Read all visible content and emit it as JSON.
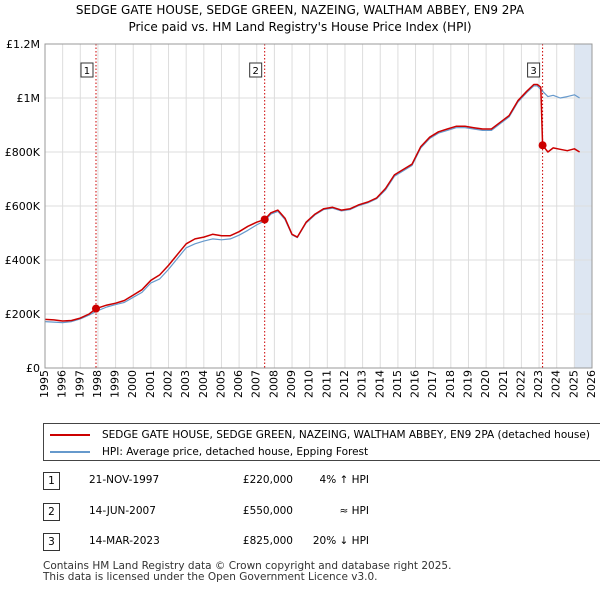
{
  "title_line1": "SEDGE GATE HOUSE, SEDGE GREEN, NAZEING, WALTHAM ABBEY, EN9 2PA",
  "title_line2": "Price paid vs. HM Land Registry's House Price Index (HPI)",
  "colors": {
    "property": "#cc0000",
    "hpi": "#6699cc",
    "shade": "#dde6f2"
  },
  "chart_data": {
    "type": "line",
    "title": "Price paid vs. HM Land Registry's House Price Index (HPI)",
    "xlabel": "",
    "ylabel": "",
    "xlim": [
      1995,
      2026
    ],
    "ylim": [
      0,
      1200000
    ],
    "x_ticks": [
      1995,
      1996,
      1997,
      1998,
      1999,
      2000,
      2001,
      2002,
      2003,
      2004,
      2005,
      2006,
      2007,
      2008,
      2009,
      2010,
      2011,
      2012,
      2013,
      2014,
      2015,
      2016,
      2017,
      2018,
      2019,
      2020,
      2021,
      2022,
      2023,
      2024,
      2025,
      2026
    ],
    "y_ticks": [
      {
        "value": 0,
        "label": "£0"
      },
      {
        "value": 200000,
        "label": "£200K"
      },
      {
        "value": 400000,
        "label": "£400K"
      },
      {
        "value": 600000,
        "label": "£600K"
      },
      {
        "value": 800000,
        "label": "£800K"
      },
      {
        "value": 1000000,
        "label": "£1M"
      },
      {
        "value": 1200000,
        "label": "£1.2M"
      }
    ],
    "forecast_shade_from": 2025.0,
    "series": [
      {
        "name": "SEDGE GATE HOUSE, SEDGE GREEN, NAZEING, WALTHAM ABBEY, EN9 2PA (detached house)",
        "color": "#cc0000",
        "points": [
          [
            1995.0,
            180000
          ],
          [
            1995.5,
            178000
          ],
          [
            1996.0,
            174000
          ],
          [
            1996.5,
            176000
          ],
          [
            1997.0,
            185000
          ],
          [
            1997.5,
            200000
          ],
          [
            1997.9,
            220000
          ],
          [
            1998.5,
            233000
          ],
          [
            1999.0,
            240000
          ],
          [
            1999.5,
            250000
          ],
          [
            2000.0,
            270000
          ],
          [
            2000.5,
            290000
          ],
          [
            2001.0,
            325000
          ],
          [
            2001.5,
            345000
          ],
          [
            2002.0,
            380000
          ],
          [
            2002.5,
            420000
          ],
          [
            2003.0,
            460000
          ],
          [
            2003.5,
            478000
          ],
          [
            2004.0,
            485000
          ],
          [
            2004.5,
            495000
          ],
          [
            2005.0,
            490000
          ],
          [
            2005.5,
            490000
          ],
          [
            2006.0,
            505000
          ],
          [
            2006.5,
            525000
          ],
          [
            2007.0,
            540000
          ],
          [
            2007.45,
            550000
          ],
          [
            2007.8,
            575000
          ],
          [
            2008.2,
            585000
          ],
          [
            2008.6,
            555000
          ],
          [
            2009.0,
            495000
          ],
          [
            2009.3,
            485000
          ],
          [
            2009.8,
            540000
          ],
          [
            2010.3,
            570000
          ],
          [
            2010.8,
            590000
          ],
          [
            2011.3,
            595000
          ],
          [
            2011.8,
            585000
          ],
          [
            2012.3,
            590000
          ],
          [
            2012.8,
            605000
          ],
          [
            2013.3,
            615000
          ],
          [
            2013.8,
            630000
          ],
          [
            2014.3,
            665000
          ],
          [
            2014.8,
            715000
          ],
          [
            2015.3,
            735000
          ],
          [
            2015.8,
            755000
          ],
          [
            2016.3,
            820000
          ],
          [
            2016.8,
            855000
          ],
          [
            2017.3,
            875000
          ],
          [
            2017.8,
            885000
          ],
          [
            2018.3,
            895000
          ],
          [
            2018.8,
            895000
          ],
          [
            2019.3,
            890000
          ],
          [
            2019.8,
            885000
          ],
          [
            2020.3,
            885000
          ],
          [
            2020.8,
            910000
          ],
          [
            2021.3,
            935000
          ],
          [
            2021.8,
            990000
          ],
          [
            2022.3,
            1025000
          ],
          [
            2022.7,
            1050000
          ],
          [
            2022.9,
            1050000
          ],
          [
            2023.1,
            1040000
          ],
          [
            2023.2,
            825000
          ],
          [
            2023.5,
            800000
          ],
          [
            2023.8,
            815000
          ],
          [
            2024.2,
            810000
          ],
          [
            2024.6,
            805000
          ],
          [
            2025.0,
            812000
          ],
          [
            2025.3,
            800000
          ]
        ]
      },
      {
        "name": "HPI: Average price, detached house, Epping Forest",
        "color": "#6699cc",
        "points": [
          [
            1995.0,
            172000
          ],
          [
            1995.5,
            170000
          ],
          [
            1996.0,
            168000
          ],
          [
            1996.5,
            172000
          ],
          [
            1997.0,
            182000
          ],
          [
            1997.5,
            196000
          ],
          [
            1997.9,
            210000
          ],
          [
            1998.5,
            226000
          ],
          [
            1999.0,
            235000
          ],
          [
            1999.5,
            243000
          ],
          [
            2000.0,
            262000
          ],
          [
            2000.5,
            280000
          ],
          [
            2001.0,
            315000
          ],
          [
            2001.5,
            330000
          ],
          [
            2002.0,
            365000
          ],
          [
            2002.5,
            405000
          ],
          [
            2003.0,
            445000
          ],
          [
            2003.5,
            460000
          ],
          [
            2004.0,
            470000
          ],
          [
            2004.5,
            478000
          ],
          [
            2005.0,
            475000
          ],
          [
            2005.5,
            478000
          ],
          [
            2006.0,
            492000
          ],
          [
            2006.5,
            510000
          ],
          [
            2007.0,
            530000
          ],
          [
            2007.45,
            545000
          ],
          [
            2007.8,
            570000
          ],
          [
            2008.2,
            580000
          ],
          [
            2008.6,
            550000
          ],
          [
            2009.0,
            493000
          ],
          [
            2009.3,
            483000
          ],
          [
            2009.8,
            537000
          ],
          [
            2010.3,
            567000
          ],
          [
            2010.8,
            587000
          ],
          [
            2011.3,
            592000
          ],
          [
            2011.8,
            582000
          ],
          [
            2012.3,
            587000
          ],
          [
            2012.8,
            602000
          ],
          [
            2013.3,
            612000
          ],
          [
            2013.8,
            627000
          ],
          [
            2014.3,
            660000
          ],
          [
            2014.8,
            710000
          ],
          [
            2015.3,
            730000
          ],
          [
            2015.8,
            750000
          ],
          [
            2016.3,
            815000
          ],
          [
            2016.8,
            850000
          ],
          [
            2017.3,
            870000
          ],
          [
            2017.8,
            880000
          ],
          [
            2018.3,
            890000
          ],
          [
            2018.8,
            890000
          ],
          [
            2019.3,
            885000
          ],
          [
            2019.8,
            880000
          ],
          [
            2020.3,
            880000
          ],
          [
            2020.8,
            905000
          ],
          [
            2021.3,
            930000
          ],
          [
            2021.8,
            985000
          ],
          [
            2022.3,
            1020000
          ],
          [
            2022.7,
            1045000
          ],
          [
            2022.9,
            1045000
          ],
          [
            2023.2,
            1025000
          ],
          [
            2023.5,
            1005000
          ],
          [
            2023.8,
            1010000
          ],
          [
            2024.2,
            1000000
          ],
          [
            2024.6,
            1005000
          ],
          [
            2025.0,
            1012000
          ],
          [
            2025.3,
            1000000
          ]
        ]
      }
    ],
    "sales": [
      {
        "id": "1",
        "x": 1997.89,
        "value": 220000
      },
      {
        "id": "2",
        "x": 2007.45,
        "value": 550000
      },
      {
        "id": "3",
        "x": 2023.2,
        "value": 825000
      }
    ]
  },
  "legend": {
    "property": "SEDGE GATE HOUSE, SEDGE GREEN, NAZEING, WALTHAM ABBEY, EN9 2PA (detached house)",
    "hpi": "HPI: Average price, detached house, Epping Forest"
  },
  "transactions": [
    {
      "num": "1",
      "date": "21-NOV-1997",
      "price": "£220,000",
      "hpi": "4% ↑ HPI"
    },
    {
      "num": "2",
      "date": "14-JUN-2007",
      "price": "£550,000",
      "hpi": "≈ HPI"
    },
    {
      "num": "3",
      "date": "14-MAR-2023",
      "price": "£825,000",
      "hpi": "20% ↓ HPI"
    }
  ],
  "footer_line1": "Contains HM Land Registry data © Crown copyright and database right 2025.",
  "footer_line2": "This data is licensed under the Open Government Licence v3.0."
}
